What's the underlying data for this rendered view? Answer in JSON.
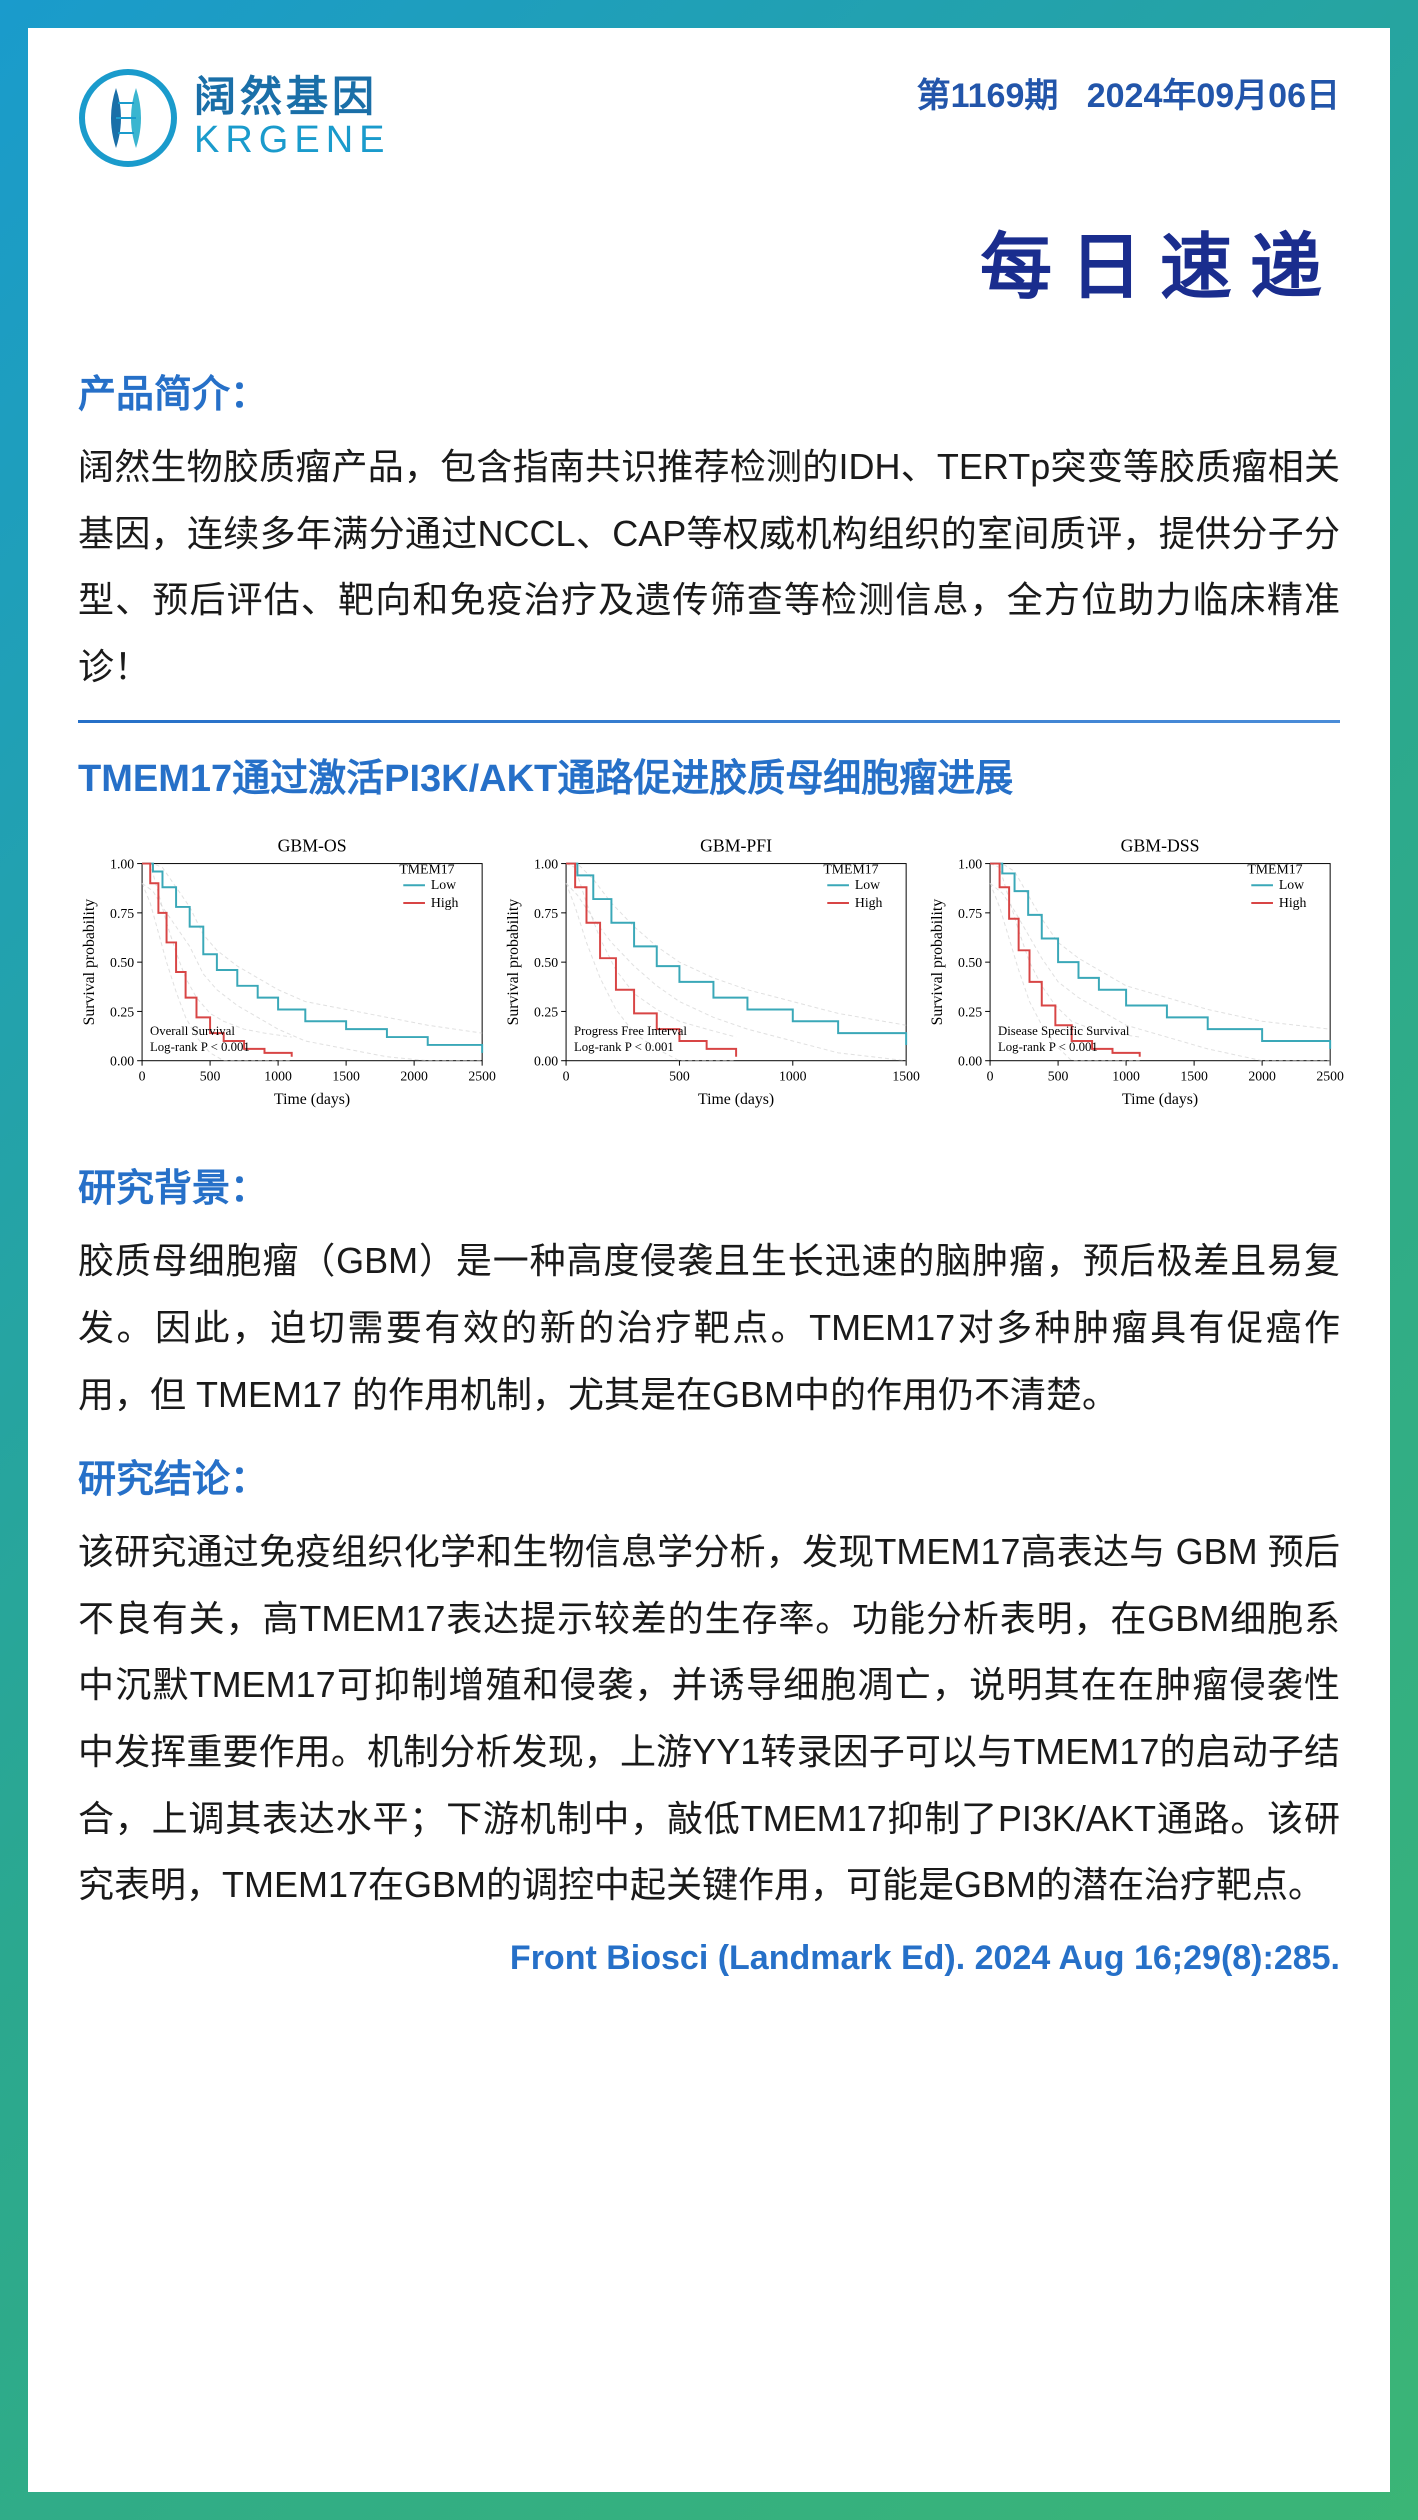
{
  "header": {
    "logo_cn": "阔然基因",
    "logo_en": "KRGENE",
    "issue_label": "第1169期",
    "date": "2024年09月06日"
  },
  "main_title": "每日速递",
  "intro": {
    "heading": "产品简介：",
    "text": "阔然生物胶质瘤产品，包含指南共识推荐检测的IDH、TERTp突变等胶质瘤相关基因，连续多年满分通过NCCL、CAP等权威机构组织的室间质评，提供分子分型、预后评估、靶向和免疫治疗及遗传筛查等检测信息，全方位助力临床精准诊！"
  },
  "article": {
    "title": "TMEM17通过激活PI3K/AKT通路促进胶质母细胞瘤进展"
  },
  "charts": [
    {
      "title": "GBM-OS",
      "ylabel": "Survival probability",
      "xlabel": "Time (days)",
      "legend_title": "TMEM17",
      "legend_items": [
        {
          "label": "Low",
          "color": "#3aa8b8"
        },
        {
          "label": "High",
          "color": "#d84545"
        }
      ],
      "annotation1": "Overall Survival",
      "annotation2": "Log-rank   P < 0.001",
      "xlim": [
        0,
        2500
      ],
      "xticks": [
        0,
        500,
        1000,
        1500,
        2000,
        2500
      ],
      "ylim": [
        0,
        1.0
      ],
      "yticks": [
        0,
        0.25,
        0.5,
        0.75,
        1.0
      ],
      "low_curve": [
        [
          0,
          1.0
        ],
        [
          80,
          0.96
        ],
        [
          150,
          0.88
        ],
        [
          250,
          0.78
        ],
        [
          350,
          0.68
        ],
        [
          450,
          0.54
        ],
        [
          550,
          0.46
        ],
        [
          700,
          0.38
        ],
        [
          850,
          0.32
        ],
        [
          1000,
          0.26
        ],
        [
          1200,
          0.2
        ],
        [
          1500,
          0.16
        ],
        [
          1800,
          0.12
        ],
        [
          2100,
          0.08
        ],
        [
          2500,
          0.04
        ]
      ],
      "high_curve": [
        [
          0,
          1.0
        ],
        [
          60,
          0.9
        ],
        [
          120,
          0.75
        ],
        [
          180,
          0.6
        ],
        [
          250,
          0.45
        ],
        [
          320,
          0.32
        ],
        [
          400,
          0.22
        ],
        [
          500,
          0.14
        ],
        [
          600,
          0.1
        ],
        [
          750,
          0.06
        ],
        [
          900,
          0.04
        ],
        [
          1100,
          0.02
        ]
      ],
      "line_width": 2,
      "ci_color": "#cccccc",
      "background": "#ffffff"
    },
    {
      "title": "GBM-PFI",
      "ylabel": "Survival probability",
      "xlabel": "Time (days)",
      "legend_title": "TMEM17",
      "legend_items": [
        {
          "label": "Low",
          "color": "#3aa8b8"
        },
        {
          "label": "High",
          "color": "#d84545"
        }
      ],
      "annotation1": "Progress  Free  Interval",
      "annotation2": "Log-rank   P < 0.001",
      "xlim": [
        0,
        1500
      ],
      "xticks": [
        0,
        500,
        1000,
        1500
      ],
      "ylim": [
        0,
        1.0
      ],
      "yticks": [
        0,
        0.25,
        0.5,
        0.75,
        1.0
      ],
      "low_curve": [
        [
          0,
          1.0
        ],
        [
          50,
          0.94
        ],
        [
          120,
          0.82
        ],
        [
          200,
          0.7
        ],
        [
          300,
          0.58
        ],
        [
          400,
          0.48
        ],
        [
          500,
          0.4
        ],
        [
          650,
          0.32
        ],
        [
          800,
          0.26
        ],
        [
          1000,
          0.2
        ],
        [
          1200,
          0.14
        ],
        [
          1500,
          0.08
        ]
      ],
      "high_curve": [
        [
          0,
          1.0
        ],
        [
          40,
          0.88
        ],
        [
          90,
          0.7
        ],
        [
          150,
          0.52
        ],
        [
          220,
          0.36
        ],
        [
          300,
          0.24
        ],
        [
          400,
          0.16
        ],
        [
          500,
          0.1
        ],
        [
          620,
          0.06
        ],
        [
          750,
          0.02
        ]
      ],
      "line_width": 2,
      "ci_color": "#cccccc",
      "background": "#ffffff"
    },
    {
      "title": "GBM-DSS",
      "ylabel": "Survival probability",
      "xlabel": "Time (days)",
      "legend_title": "TMEM17",
      "legend_items": [
        {
          "label": "Low",
          "color": "#3aa8b8"
        },
        {
          "label": "High",
          "color": "#d84545"
        }
      ],
      "annotation1": "Disease  Specific  Survival",
      "annotation2": "Log-rank   P < 0.001",
      "xlim": [
        0,
        2500
      ],
      "xticks": [
        0,
        500,
        1000,
        1500,
        2000,
        2500
      ],
      "ylim": [
        0,
        1.0
      ],
      "yticks": [
        0,
        0.25,
        0.5,
        0.75,
        1.0
      ],
      "low_curve": [
        [
          0,
          1.0
        ],
        [
          90,
          0.95
        ],
        [
          180,
          0.86
        ],
        [
          280,
          0.74
        ],
        [
          380,
          0.62
        ],
        [
          500,
          0.5
        ],
        [
          650,
          0.42
        ],
        [
          800,
          0.36
        ],
        [
          1000,
          0.28
        ],
        [
          1300,
          0.22
        ],
        [
          1600,
          0.16
        ],
        [
          2000,
          0.1
        ],
        [
          2500,
          0.06
        ]
      ],
      "high_curve": [
        [
          0,
          1.0
        ],
        [
          70,
          0.88
        ],
        [
          140,
          0.72
        ],
        [
          210,
          0.56
        ],
        [
          290,
          0.4
        ],
        [
          380,
          0.28
        ],
        [
          480,
          0.18
        ],
        [
          600,
          0.1
        ],
        [
          750,
          0.06
        ],
        [
          900,
          0.04
        ],
        [
          1100,
          0.02
        ]
      ],
      "line_width": 2,
      "ci_color": "#cccccc",
      "background": "#ffffff"
    }
  ],
  "background": {
    "heading": "研究背景：",
    "text": "胶质母细胞瘤（GBM）是一种高度侵袭且生长迅速的脑肿瘤，预后极差且易复发。因此，迫切需要有效的新的治疗靶点。TMEM17对多种肿瘤具有促癌作用，但 TMEM17 的作用机制，尤其是在GBM中的作用仍不清楚。"
  },
  "conclusion": {
    "heading": "研究结论：",
    "text": "该研究通过免疫组织化学和生物信息学分析，发现TMEM17高表达与 GBM 预后不良有关，高TMEM17表达提示较差的生存率。功能分析表明，在GBM细胞系中沉默TMEM17可抑制增殖和侵袭，并诱导细胞凋亡，说明其在在肿瘤侵袭性中发挥重要作用。机制分析发现，上游YY1转录因子可以与TMEM17的启动子结合，上调其表达水平；下游机制中，敲低TMEM17抑制了PI3K/AKT通路。该研究表明，TMEM17在GBM的调控中起关键作用，可能是GBM的潜在治疗靶点。"
  },
  "citation": "Front Biosci (Landmark Ed). 2024 Aug 16;29(8):285.",
  "colors": {
    "heading_blue": "#2670c8",
    "title_navy": "#1a2d8e",
    "body_black": "#1a1a1a"
  }
}
